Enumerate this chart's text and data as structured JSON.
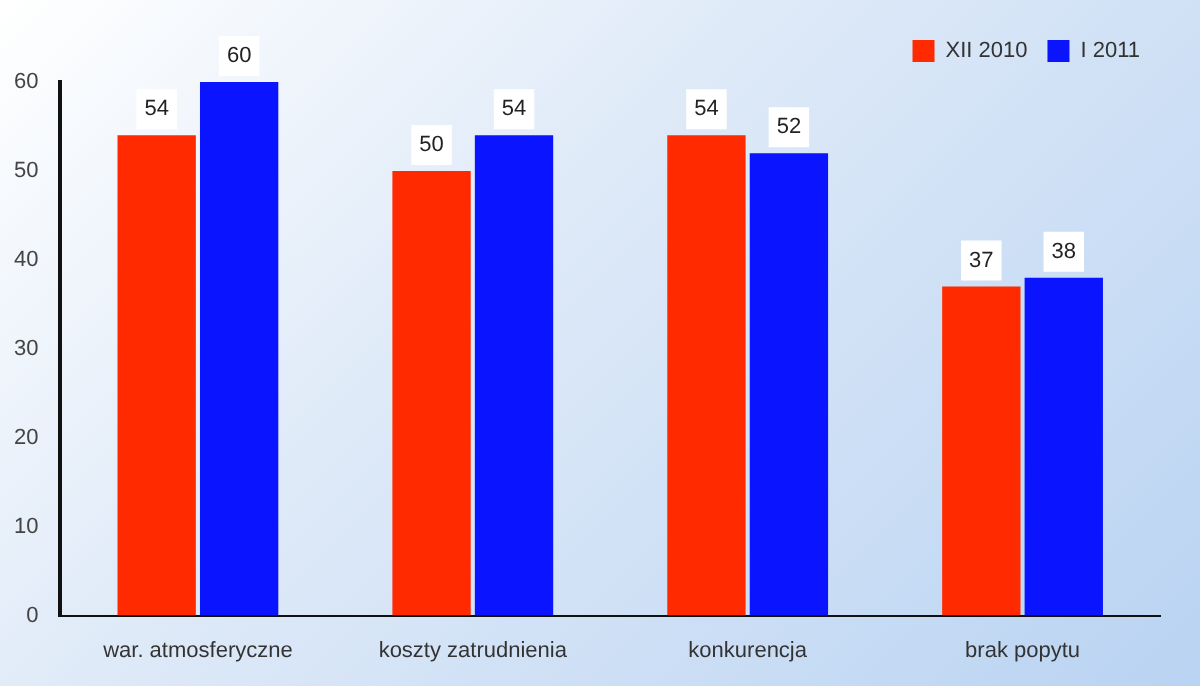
{
  "chart_data": {
    "type": "bar",
    "categories": [
      "war. atmosferyczne",
      "koszty zatrudnienia",
      "konkurencja",
      "brak popytu"
    ],
    "series": [
      {
        "name": "XII 2010",
        "color": "#ff2a00",
        "values": [
          54,
          50,
          54,
          37
        ]
      },
      {
        "name": "I 2011",
        "color": "#0a14ff",
        "values": [
          60,
          54,
          52,
          38
        ]
      }
    ],
    "ylim": [
      0,
      60
    ],
    "yticks": [
      0,
      10,
      20,
      30,
      40,
      50,
      60
    ],
    "grid": false,
    "legend": "top right",
    "data_labels": true
  }
}
